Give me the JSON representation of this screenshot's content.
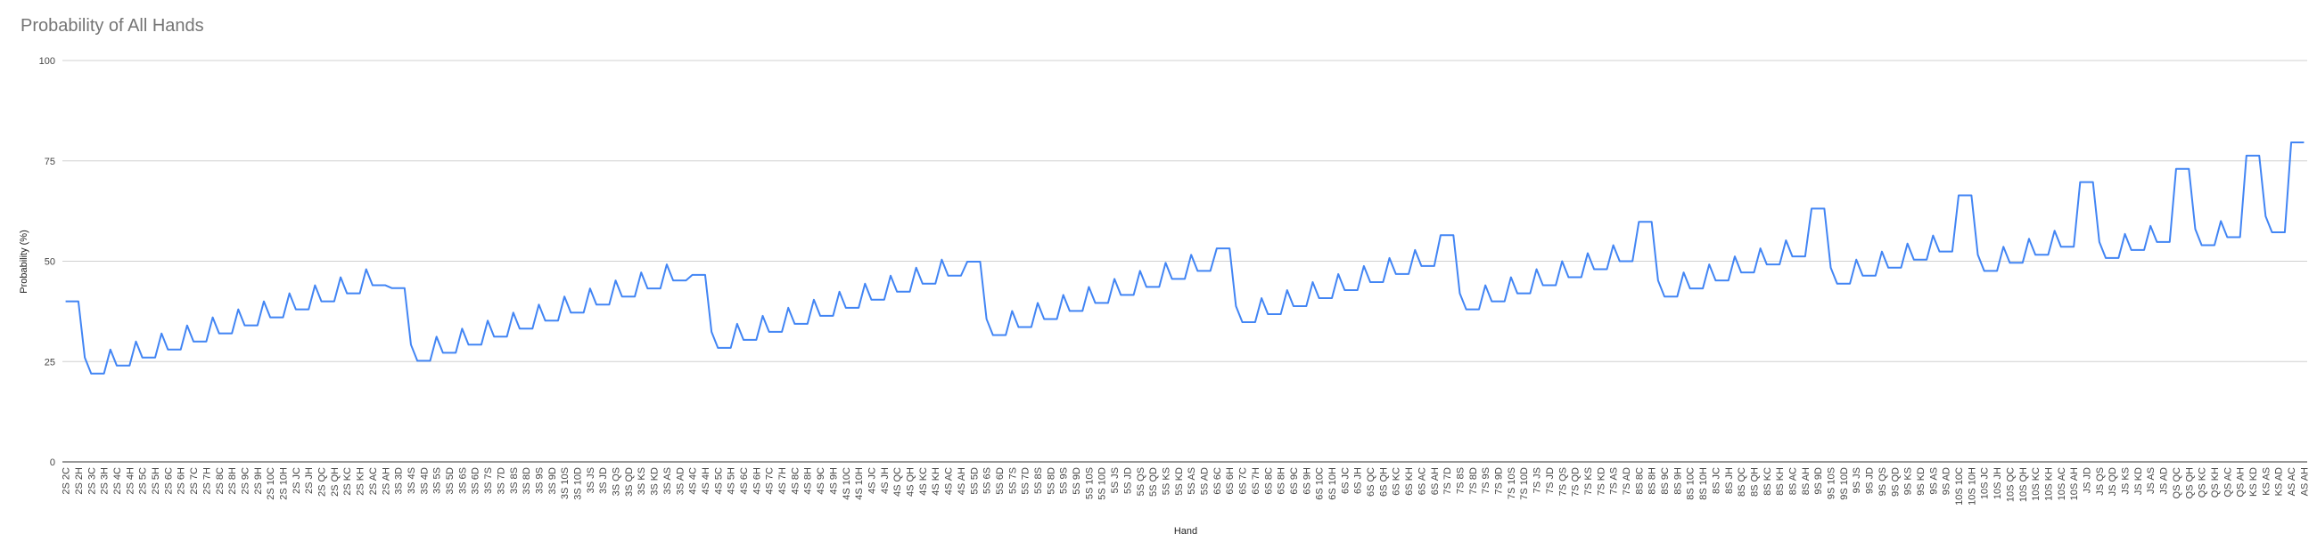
{
  "chart_data": {
    "type": "line",
    "title": "Probability of All Hands",
    "x_label": "Hand",
    "y_label": "Probability (%)",
    "ylim": [
      0,
      100
    ],
    "yticks": [
      0,
      25,
      50,
      75,
      100
    ],
    "grid": true,
    "categories": [
      "2S 2C",
      null,
      "2S 2H",
      null,
      "2S 3C",
      null,
      "2S 3H",
      null,
      "2S 4C",
      null,
      "2S 4H",
      null,
      "2S 5C",
      null,
      "2S 5H",
      null,
      "2S 6C",
      null,
      "2S 6H",
      null,
      "2S 7C",
      null,
      "2S 7H",
      null,
      "2S 8C",
      null,
      "2S 8H",
      null,
      "2S 9C",
      null,
      "2S 9H",
      null,
      "2S 10C",
      null,
      "2S 10H",
      null,
      "2S JC",
      null,
      "2S JH",
      null,
      "2S QC",
      null,
      "2S QH",
      null,
      "2S KC",
      null,
      "2S KH",
      null,
      "2S AC",
      null,
      "2S AH",
      null,
      "3S 3D",
      null,
      "3S 4S",
      null,
      "3S 4D",
      null,
      "3S 5S",
      null,
      "3S 5D",
      null,
      "3S 6S",
      null,
      "3S 6D",
      null,
      "3S 7S",
      null,
      "3S 7D",
      null,
      "3S 8S",
      null,
      "3S 8D",
      null,
      "3S 9S",
      null,
      "3S 9D",
      null,
      "3S 10S",
      null,
      "3S 10D",
      null,
      "3S JS",
      null,
      "3S JD",
      null,
      "3S QS",
      null,
      "3S QD",
      null,
      "3S KS",
      null,
      "3S KD",
      null,
      "3S AS",
      null,
      "3S AD",
      null,
      "4S 4C",
      null,
      "4S 4H",
      null,
      "4S 5C",
      null,
      "4S 5H",
      null,
      "4S 6C",
      null,
      "4S 6H",
      null,
      "4S 7C",
      null,
      "4S 7H",
      null,
      "4S 8C",
      null,
      "4S 8H",
      null,
      "4S 9C",
      null,
      "4S 9H",
      null,
      "4S 10C",
      null,
      "4S 10H",
      null,
      "4S JC",
      null,
      "4S JH",
      null,
      "4S QC",
      null,
      "4S QH",
      null,
      "4S KC",
      null,
      "4S KH",
      null,
      "4S AC",
      null,
      "4S AH",
      null,
      "5S 5D",
      null,
      "5S 6S",
      null,
      "5S 6D",
      null,
      "5S 7S",
      null,
      "5S 7D",
      null,
      "5S 8S",
      null,
      "5S 8D",
      null,
      "5S 9S",
      null,
      "5S 9D",
      null,
      "5S 10S",
      null,
      "5S 10D",
      null,
      "5S JS",
      null,
      "5S JD",
      null,
      "5S QS",
      null,
      "5S QD",
      null,
      "5S KS",
      null,
      "5S KD",
      null,
      "5S AS",
      null,
      "5S AD",
      null,
      "6S 6C",
      null,
      "6S 6H",
      null,
      "6S 7C",
      null,
      "6S 7H",
      null,
      "6S 8C",
      null,
      "6S 8H",
      null,
      "6S 9C",
      null,
      "6S 9H",
      null,
      "6S 10C",
      null,
      "6S 10H",
      null,
      "6S JC",
      null,
      "6S JH",
      null,
      "6S QC",
      null,
      "6S QH",
      null,
      "6S KC",
      null,
      "6S KH",
      null,
      "6S AC",
      null,
      "6S AH",
      null,
      "7S 7D",
      null,
      "7S 8S",
      null,
      "7S 8D",
      null,
      "7S 9S",
      null,
      "7S 9D",
      null,
      "7S 10S",
      null,
      "7S 10D",
      null,
      "7S JS",
      null,
      "7S JD",
      null,
      "7S QS",
      null,
      "7S QD",
      null,
      "7S KS",
      null,
      "7S KD",
      null,
      "7S AS",
      null,
      "7S AD",
      null,
      "8S 8C",
      null,
      "8S 8H",
      null,
      "8S 9C",
      null,
      "8S 9H",
      null,
      "8S 10C",
      null,
      "8S 10H",
      null,
      "8S JC",
      null,
      "8S JH",
      null,
      "8S QC",
      null,
      "8S QH",
      null,
      "8S KC",
      null,
      "8S KH",
      null,
      "8S AC",
      null,
      "8S AH",
      null,
      "9S 9D",
      null,
      "9S 10S",
      null,
      "9S 10D",
      null,
      "9S JS",
      null,
      "9S JD",
      null,
      "9S QS",
      null,
      "9S QD",
      null,
      "9S KS",
      null,
      "9S KD",
      null,
      "9S AS",
      null,
      "9S AD",
      null,
      "10S 10C",
      null,
      "10S 10H",
      null,
      "10S JC",
      null,
      "10S JH",
      null,
      "10S QC",
      null,
      "10S QH",
      null,
      "10S KC",
      null,
      "10S KH",
      null,
      "10S AC",
      null,
      "10S AH",
      null,
      "JS JD",
      null,
      "JS QS",
      null,
      "JS QD",
      null,
      "JS KS",
      null,
      "JS KD",
      null,
      "JS AS",
      null,
      "JS AD",
      null,
      "QS QC",
      null,
      "QS QH",
      null,
      "QS KC",
      null,
      "QS KH",
      null,
      "QS AC",
      null,
      "QS AH",
      null,
      "KS KD",
      null,
      "KS AS",
      null,
      "KS AD",
      null,
      "AS AC",
      null,
      "AS AH"
    ],
    "series": [
      {
        "name": "Probability",
        "color": "#4285f4",
        "values": [
          40,
          40,
          40,
          26,
          22,
          22,
          22,
          28,
          24,
          24,
          24,
          30,
          26,
          26,
          26,
          32,
          28,
          28,
          28,
          34,
          30,
          30,
          30,
          36,
          32,
          32,
          32,
          38,
          34,
          34,
          34,
          40,
          36,
          36,
          36,
          42,
          38,
          38,
          38,
          44,
          40,
          40,
          40,
          46,
          42,
          42,
          42,
          48,
          44,
          44,
          44,
          43.3,
          43.3,
          43.3,
          29.2,
          25.2,
          25.2,
          25.2,
          31.2,
          27.2,
          27.2,
          27.2,
          33.2,
          29.2,
          29.2,
          29.2,
          35.2,
          31.2,
          31.2,
          31.2,
          37.2,
          33.2,
          33.2,
          33.2,
          39.2,
          35.2,
          35.2,
          35.2,
          41.2,
          37.2,
          37.2,
          37.2,
          43.2,
          39.2,
          39.2,
          39.2,
          45.2,
          41.2,
          41.2,
          41.2,
          47.2,
          43.2,
          43.2,
          43.2,
          49.2,
          45.2,
          45.2,
          45.2,
          46.6,
          46.6,
          46.6,
          32.4,
          28.4,
          28.4,
          28.4,
          34.4,
          30.4,
          30.4,
          30.4,
          36.4,
          32.4,
          32.4,
          32.4,
          38.4,
          34.4,
          34.4,
          34.4,
          40.4,
          36.4,
          36.4,
          36.4,
          42.4,
          38.4,
          38.4,
          38.4,
          44.4,
          40.4,
          40.4,
          40.4,
          46.4,
          42.4,
          42.4,
          42.4,
          48.4,
          44.4,
          44.4,
          44.4,
          50.4,
          46.4,
          46.4,
          46.4,
          49.9,
          49.9,
          49.9,
          35.6,
          31.6,
          31.6,
          31.6,
          37.6,
          33.6,
          33.6,
          33.6,
          39.6,
          35.6,
          35.6,
          35.6,
          41.6,
          37.6,
          37.6,
          37.6,
          43.6,
          39.6,
          39.6,
          39.6,
          45.6,
          41.6,
          41.6,
          41.6,
          47.6,
          43.6,
          43.6,
          43.6,
          49.6,
          45.6,
          45.6,
          45.6,
          51.6,
          47.6,
          47.6,
          47.6,
          53.2,
          53.2,
          53.2,
          38.8,
          34.8,
          34.8,
          34.8,
          40.8,
          36.8,
          36.8,
          36.8,
          42.8,
          38.8,
          38.8,
          38.8,
          44.8,
          40.8,
          40.8,
          40.8,
          46.8,
          42.8,
          42.8,
          42.8,
          48.8,
          44.8,
          44.8,
          44.8,
          50.8,
          46.8,
          46.8,
          46.8,
          52.8,
          48.8,
          48.8,
          48.8,
          56.5,
          56.5,
          56.5,
          42,
          38,
          38,
          38,
          44,
          40,
          40,
          40,
          46,
          42,
          42,
          42,
          48,
          44,
          44,
          44,
          50,
          46,
          46,
          46,
          52,
          48,
          48,
          48,
          54,
          50,
          50,
          50,
          59.8,
          59.8,
          59.8,
          45.2,
          41.2,
          41.2,
          41.2,
          47.2,
          43.2,
          43.2,
          43.2,
          49.2,
          45.2,
          45.2,
          45.2,
          51.2,
          47.2,
          47.2,
          47.2,
          53.2,
          49.2,
          49.2,
          49.2,
          55.2,
          51.2,
          51.2,
          51.2,
          63.1,
          63.1,
          63.1,
          48.4,
          44.4,
          44.4,
          44.4,
          50.4,
          46.4,
          46.4,
          46.4,
          52.4,
          48.4,
          48.4,
          48.4,
          54.4,
          50.4,
          50.4,
          50.4,
          56.4,
          52.4,
          52.4,
          52.4,
          66.4,
          66.4,
          66.4,
          51.6,
          47.6,
          47.6,
          47.6,
          53.6,
          49.6,
          49.6,
          49.6,
          55.6,
          51.6,
          51.6,
          51.6,
          57.6,
          53.6,
          53.6,
          53.6,
          69.7,
          69.7,
          69.7,
          54.8,
          50.8,
          50.8,
          50.8,
          56.8,
          52.8,
          52.8,
          52.8,
          58.8,
          54.8,
          54.8,
          54.8,
          73,
          73,
          73,
          58,
          54,
          54,
          54,
          60,
          56,
          56,
          56,
          76.3,
          76.3,
          76.3,
          61.2,
          57.2,
          57.2,
          57.2,
          79.6,
          79.6,
          79.6
        ]
      }
    ]
  }
}
